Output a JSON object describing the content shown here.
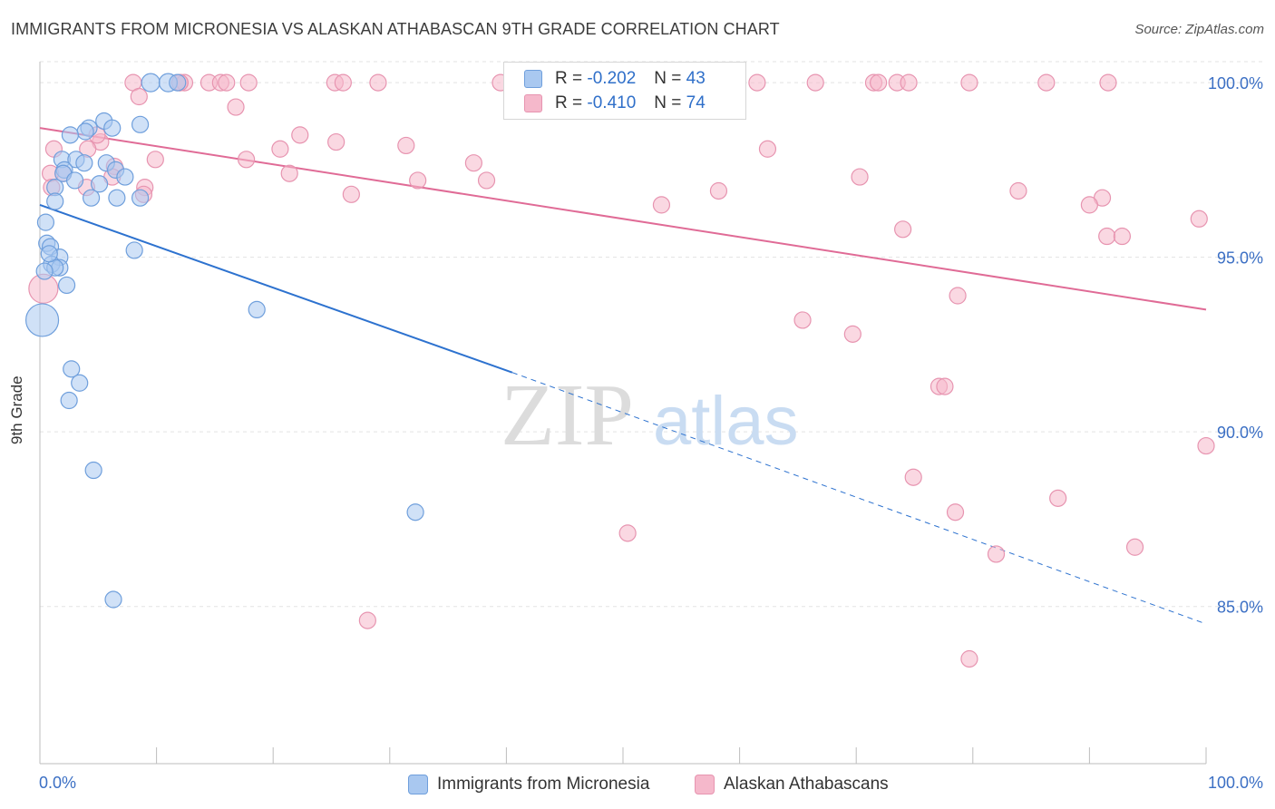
{
  "title": "IMMIGRANTS FROM MICRONESIA VS ALASKAN ATHABASCAN 9TH GRADE CORRELATION CHART",
  "source": "Source: ZipAtlas.com",
  "watermark": {
    "zip": "ZIP",
    "atlas": "atlas"
  },
  "colors": {
    "blue_fill": "#a9c8f0",
    "blue_stroke": "#6f9fdc",
    "blue_line": "#2d72cf",
    "pink_fill": "#f5b8cb",
    "pink_stroke": "#e794b0",
    "pink_line": "#e06b96",
    "axis_text": "#3b6fc4"
  },
  "legend": {
    "rows": [
      {
        "r_label": "R =",
        "r_value": "-0.202",
        "n_label": "N =",
        "n_value": "43"
      },
      {
        "r_label": "R =",
        "r_value": "-0.410",
        "n_label": "N =",
        "n_value": "74"
      }
    ]
  },
  "chart_data": {
    "type": "scatter",
    "title": "IMMIGRANTS FROM MICRONESIA VS ALASKAN ATHABASCAN 9TH GRADE CORRELATION CHART",
    "xlabel": "",
    "ylabel": "9th Grade",
    "xlim": [
      0,
      100
    ],
    "ylim": [
      80.5,
      100.6
    ],
    "x_tick_labels": [
      "0.0%",
      "100.0%"
    ],
    "y_ticks": [
      85,
      90,
      95,
      100
    ],
    "y_tick_labels": [
      "85.0%",
      "90.0%",
      "95.0%",
      "100.0%"
    ],
    "grid": true,
    "legend_position": "top-center",
    "series": [
      {
        "name": "Immigrants from Micronesia",
        "color": "#a9c8f0",
        "trend": {
          "x0": 0,
          "y0": 96.5,
          "x1": 40.5,
          "y1": 91.7,
          "dash_to_x": 100,
          "dash_to_y": 84.5
        },
        "points": [
          [
            9.5,
            100
          ],
          [
            11,
            100
          ],
          [
            8.6,
            98.8
          ],
          [
            5.5,
            98.9
          ],
          [
            6.2,
            98.7
          ],
          [
            4.2,
            98.7
          ],
          [
            3.9,
            98.6
          ],
          [
            2.6,
            98.5
          ],
          [
            1.9,
            97.8
          ],
          [
            3.1,
            97.8
          ],
          [
            3.8,
            97.7
          ],
          [
            5.7,
            97.7
          ],
          [
            2.1,
            97.5
          ],
          [
            2.0,
            97.4
          ],
          [
            6.5,
            97.5
          ],
          [
            7.3,
            97.3
          ],
          [
            3.0,
            97.2
          ],
          [
            5.1,
            97.1
          ],
          [
            1.3,
            97.0
          ],
          [
            4.4,
            96.7
          ],
          [
            6.6,
            96.7
          ],
          [
            8.6,
            96.7
          ],
          [
            1.3,
            96.6
          ],
          [
            0.5,
            96.0
          ],
          [
            0.6,
            95.4
          ],
          [
            0.9,
            95.3
          ],
          [
            8.1,
            95.2
          ],
          [
            1.7,
            95.0
          ],
          [
            1.0,
            94.8
          ],
          [
            1.7,
            94.7
          ],
          [
            1.3,
            94.7
          ],
          [
            2.3,
            94.2
          ],
          [
            0.2,
            93.2
          ],
          [
            18.6,
            93.5
          ],
          [
            2.7,
            91.8
          ],
          [
            3.4,
            91.4
          ],
          [
            2.5,
            90.9
          ],
          [
            4.6,
            88.9
          ],
          [
            32.2,
            87.7
          ],
          [
            6.3,
            85.2
          ],
          [
            11.8,
            100
          ],
          [
            0.8,
            95.1
          ],
          [
            0.4,
            94.6
          ]
        ],
        "sizes_r": [
          10,
          10,
          9,
          9,
          9,
          9,
          9,
          9,
          9,
          9,
          9,
          9,
          9,
          9,
          9,
          9,
          9,
          9,
          9,
          9,
          9,
          9,
          9,
          9,
          9,
          9,
          9,
          9,
          9,
          9,
          9,
          9,
          18,
          9,
          9,
          9,
          9,
          9,
          9,
          9,
          9,
          9,
          9
        ]
      },
      {
        "name": "Alaskan Athabascans",
        "color": "#f5b8cb",
        "trend": {
          "x0": 0,
          "y0": 98.7,
          "x1": 100,
          "y1": 93.5
        },
        "points": [
          [
            8,
            100
          ],
          [
            12,
            100
          ],
          [
            12.4,
            100
          ],
          [
            14.5,
            100
          ],
          [
            15.5,
            100
          ],
          [
            16,
            100
          ],
          [
            17.9,
            100
          ],
          [
            25.3,
            100
          ],
          [
            26,
            100
          ],
          [
            29,
            100
          ],
          [
            39.5,
            100
          ],
          [
            41,
            100
          ],
          [
            59.8,
            100
          ],
          [
            61.5,
            100
          ],
          [
            66.5,
            100
          ],
          [
            71.5,
            100
          ],
          [
            71.9,
            100
          ],
          [
            73.5,
            100
          ],
          [
            74.5,
            100
          ],
          [
            79.7,
            100
          ],
          [
            86.3,
            100
          ],
          [
            91.6,
            100
          ],
          [
            8.5,
            99.6
          ],
          [
            16.8,
            99.3
          ],
          [
            22.3,
            98.5
          ],
          [
            25.4,
            98.3
          ],
          [
            20.6,
            98.1
          ],
          [
            31.4,
            98.2
          ],
          [
            5.2,
            98.3
          ],
          [
            4.1,
            98.1
          ],
          [
            1.2,
            98.1
          ],
          [
            9.9,
            97.8
          ],
          [
            17.7,
            97.8
          ],
          [
            37.2,
            97.7
          ],
          [
            62.4,
            98.1
          ],
          [
            6.4,
            97.6
          ],
          [
            2.0,
            97.4
          ],
          [
            0.9,
            97.4
          ],
          [
            6.2,
            97.3
          ],
          [
            21.4,
            97.4
          ],
          [
            38.3,
            97.2
          ],
          [
            32.4,
            97.2
          ],
          [
            70.3,
            97.3
          ],
          [
            9.0,
            97.0
          ],
          [
            4.0,
            97.0
          ],
          [
            58.2,
            96.9
          ],
          [
            26.7,
            96.8
          ],
          [
            8.9,
            96.8
          ],
          [
            83.9,
            96.9
          ],
          [
            91.1,
            96.7
          ],
          [
            90.0,
            96.5
          ],
          [
            53.3,
            96.5
          ],
          [
            99.4,
            96.1
          ],
          [
            74.0,
            95.8
          ],
          [
            91.5,
            95.6
          ],
          [
            92.8,
            95.6
          ],
          [
            0.3,
            94.1
          ],
          [
            78.7,
            93.9
          ],
          [
            65.4,
            93.2
          ],
          [
            69.7,
            92.8
          ],
          [
            77.1,
            91.3
          ],
          [
            77.6,
            91.3
          ],
          [
            100,
            89.6
          ],
          [
            74.9,
            88.7
          ],
          [
            78.5,
            87.7
          ],
          [
            87.3,
            88.1
          ],
          [
            50.4,
            87.1
          ],
          [
            82.0,
            86.5
          ],
          [
            93.9,
            86.7
          ],
          [
            28.1,
            84.6
          ],
          [
            79.7,
            83.5
          ],
          [
            12.0,
            100
          ],
          [
            4.9,
            98.5
          ],
          [
            1.0,
            97.0
          ]
        ],
        "sizes_r": [
          9,
          9,
          9,
          9,
          9,
          9,
          9,
          9,
          9,
          9,
          9,
          9,
          9,
          9,
          9,
          9,
          9,
          9,
          9,
          9,
          9,
          9,
          9,
          9,
          9,
          9,
          9,
          9,
          9,
          9,
          9,
          9,
          9,
          9,
          9,
          9,
          9,
          9,
          9,
          9,
          9,
          9,
          9,
          9,
          9,
          9,
          9,
          9,
          9,
          9,
          9,
          9,
          9,
          9,
          9,
          9,
          16,
          9,
          9,
          9,
          9,
          9,
          9,
          9,
          9,
          9,
          9,
          9,
          9,
          9,
          9,
          9,
          9,
          9
        ]
      }
    ]
  }
}
